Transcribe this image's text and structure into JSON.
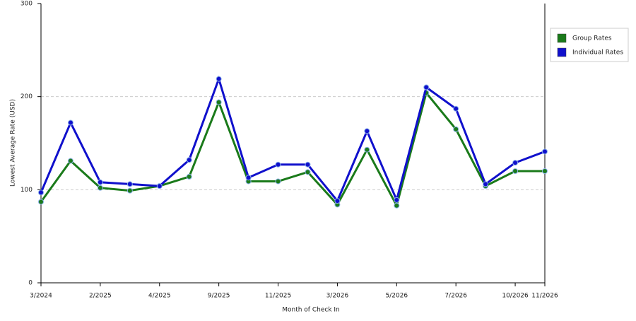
{
  "chart_data": {
    "type": "line",
    "x_label": "Month of Check In",
    "y_label": "Lowest Average Rate (USD)",
    "categories": [
      "3/2024",
      null,
      "2/2025",
      null,
      "4/2025",
      null,
      "9/2025",
      null,
      "11/2025",
      null,
      "3/2026",
      null,
      "5/2026",
      null,
      "7/2026",
      null,
      "10/2026",
      "11/2026"
    ],
    "series": [
      {
        "name": "Group Rates",
        "color": "#1a7a1a",
        "values": [
          87,
          131,
          102,
          99,
          104,
          114,
          194,
          109,
          109,
          119,
          84,
          143,
          83,
          204,
          165,
          104,
          120,
          120
        ]
      },
      {
        "name": "Individual Rates",
        "color": "#1010cc",
        "values": [
          97,
          172,
          108,
          106,
          104,
          132,
          219,
          113,
          127,
          127,
          88,
          163,
          89,
          210,
          187,
          106,
          129,
          141
        ]
      }
    ],
    "ylim": [
      0,
      300
    ],
    "yticks": [
      0,
      100,
      200,
      300
    ],
    "grid": true,
    "legend": "right"
  }
}
